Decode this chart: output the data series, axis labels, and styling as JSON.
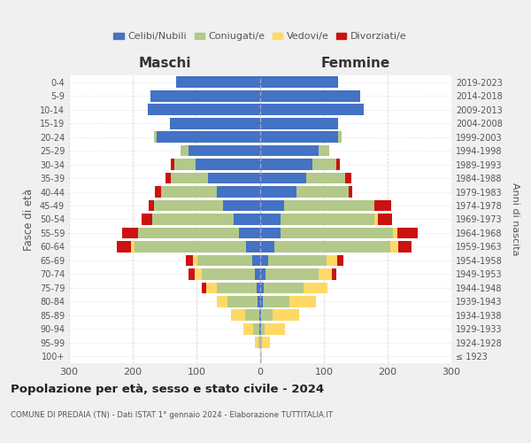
{
  "age_groups": [
    "100+",
    "95-99",
    "90-94",
    "85-89",
    "80-84",
    "75-79",
    "70-74",
    "65-69",
    "60-64",
    "55-59",
    "50-54",
    "45-49",
    "40-44",
    "35-39",
    "30-34",
    "25-29",
    "20-24",
    "15-19",
    "10-14",
    "5-9",
    "0-4"
  ],
  "birth_years": [
    "≤ 1923",
    "1924-1928",
    "1929-1933",
    "1934-1938",
    "1939-1943",
    "1944-1948",
    "1949-1953",
    "1954-1958",
    "1959-1963",
    "1964-1968",
    "1969-1973",
    "1974-1978",
    "1979-1983",
    "1984-1988",
    "1989-1993",
    "1994-1998",
    "1999-2003",
    "2004-2008",
    "2009-2013",
    "2014-2018",
    "2019-2023"
  ],
  "colors": {
    "celibe": "#4472c4",
    "coniugato": "#b2c98a",
    "vedovo": "#ffd966",
    "divorziato": "#cc1111"
  },
  "maschi": {
    "celibe": [
      0,
      0,
      1,
      2,
      4,
      6,
      9,
      12,
      22,
      33,
      42,
      58,
      68,
      82,
      102,
      112,
      162,
      142,
      177,
      172,
      132
    ],
    "coniugato": [
      0,
      3,
      10,
      22,
      47,
      62,
      82,
      87,
      175,
      158,
      128,
      108,
      88,
      58,
      33,
      13,
      4,
      0,
      0,
      0,
      0
    ],
    "vedovo": [
      0,
      5,
      15,
      22,
      17,
      17,
      12,
      6,
      6,
      0,
      0,
      0,
      0,
      0,
      0,
      0,
      0,
      0,
      0,
      0,
      0
    ],
    "divorziato": [
      0,
      0,
      0,
      0,
      0,
      6,
      9,
      12,
      22,
      26,
      16,
      9,
      9,
      9,
      5,
      0,
      0,
      0,
      0,
      0,
      0
    ]
  },
  "femmine": {
    "nubile": [
      0,
      0,
      1,
      2,
      4,
      6,
      9,
      12,
      22,
      32,
      32,
      37,
      57,
      72,
      82,
      92,
      122,
      122,
      162,
      157,
      122
    ],
    "coniugata": [
      0,
      3,
      6,
      17,
      42,
      62,
      82,
      92,
      182,
      177,
      147,
      142,
      82,
      62,
      37,
      17,
      6,
      0,
      0,
      0,
      0
    ],
    "vedova": [
      3,
      12,
      32,
      42,
      42,
      37,
      22,
      17,
      12,
      6,
      6,
      0,
      0,
      0,
      0,
      0,
      0,
      0,
      0,
      0,
      0
    ],
    "divorziata": [
      0,
      0,
      0,
      0,
      0,
      0,
      6,
      9,
      22,
      32,
      22,
      27,
      6,
      9,
      6,
      0,
      0,
      0,
      0,
      0,
      0
    ]
  },
  "xlim": 300,
  "title": "Popolazione per età, sesso e stato civile - 2024",
  "subtitle": "COMUNE DI PREDAIA (TN) - Dati ISTAT 1° gennaio 2024 - Elaborazione TUTTITALIA.IT",
  "xlabel_left": "Maschi",
  "xlabel_right": "Femmine",
  "ylabel_left": "Fasce di età",
  "ylabel_right": "Anni di nascita",
  "legend_labels": [
    "Celibi/Nubili",
    "Coniugati/e",
    "Vedovi/e",
    "Divorziati/e"
  ],
  "bg_color": "#f0f0f0",
  "plot_bg_color": "#ffffff",
  "grid_color": "#cccccc",
  "text_color": "#555555"
}
